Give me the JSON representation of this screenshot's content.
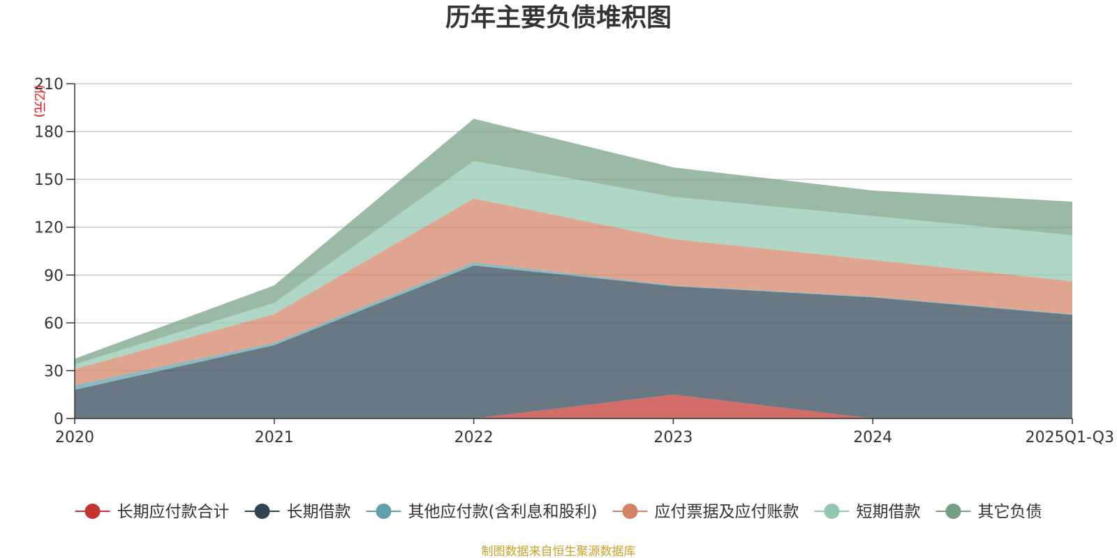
{
  "chart_data": {
    "type": "area",
    "stacked": true,
    "title": "历年主要负债堆积图",
    "unit_label": "(亿元)",
    "categories": [
      "2020",
      "2021",
      "2022",
      "2023",
      "2024",
      "2025Q1-Q3"
    ],
    "ylim": [
      0,
      210
    ],
    "yticks": [
      0,
      30,
      60,
      90,
      120,
      150,
      180,
      210
    ],
    "grid": true,
    "legend_position": "bottom",
    "series": [
      {
        "name": "长期应付款合计",
        "color": "#c23531",
        "values": [
          0,
          0,
          0,
          15,
          0,
          0
        ]
      },
      {
        "name": "长期借款",
        "color": "#2f4554",
        "values": [
          18,
          46,
          96,
          68,
          76,
          65
        ]
      },
      {
        "name": "其他应付款(含利息和股利)",
        "color": "#61a0a8",
        "values": [
          3,
          1.5,
          2,
          0.5,
          0.5,
          0.5
        ]
      },
      {
        "name": "应付票据及应付账款",
        "color": "#d48265",
        "values": [
          10,
          18,
          40,
          29,
          23,
          20.5
        ]
      },
      {
        "name": "短期借款",
        "color": "#91c7ae",
        "values": [
          3,
          7,
          23.5,
          26.5,
          27.5,
          29
        ]
      },
      {
        "name": "其它负债",
        "color": "#749f83",
        "values": [
          3.5,
          11,
          26.5,
          18.5,
          16,
          21
        ]
      }
    ]
  },
  "source_note": "制图数据来自恒生聚源数据库"
}
